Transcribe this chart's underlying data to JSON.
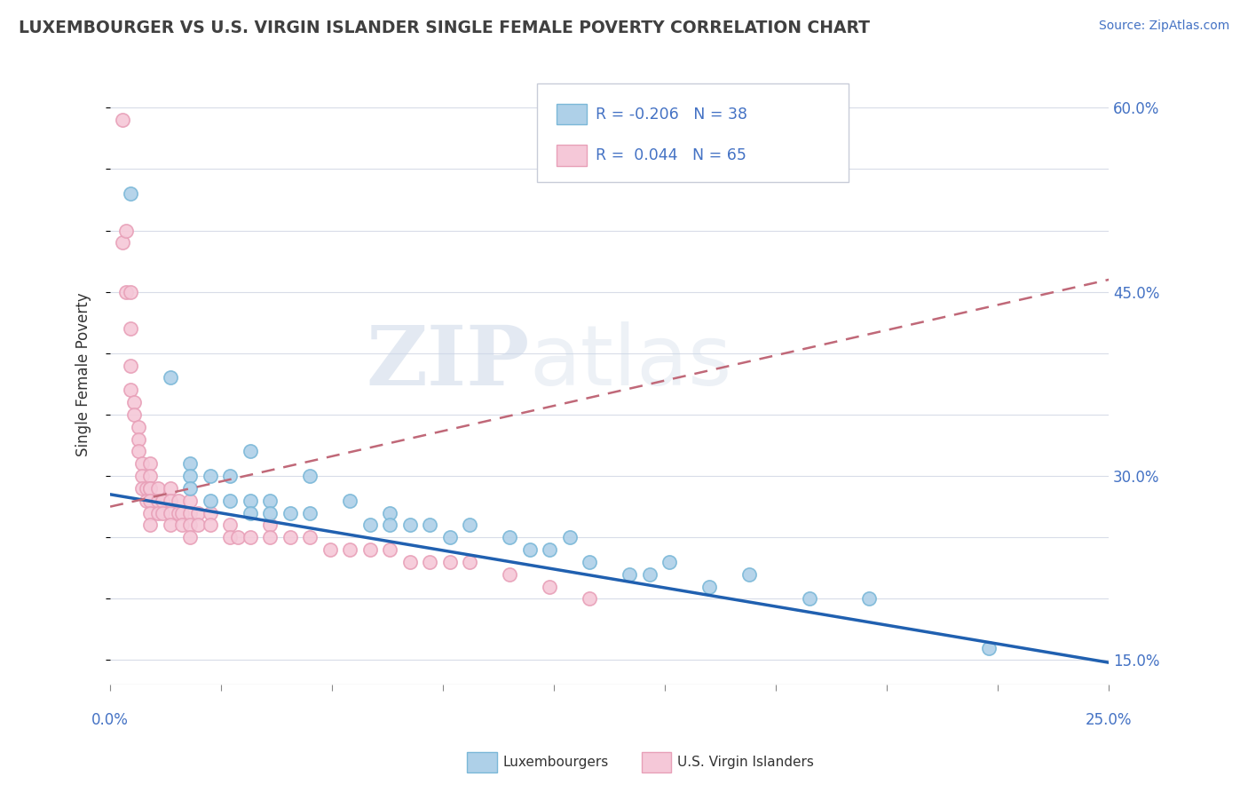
{
  "title": "LUXEMBOURGER VS U.S. VIRGIN ISLANDER SINGLE FEMALE POVERTY CORRELATION CHART",
  "source": "Source: ZipAtlas.com",
  "ylabel": "Single Female Poverty",
  "xlim": [
    0.0,
    0.25
  ],
  "ylim": [
    0.13,
    0.635
  ],
  "ytick_vals": [
    0.15,
    0.2,
    0.25,
    0.3,
    0.35,
    0.4,
    0.45,
    0.5,
    0.55,
    0.6
  ],
  "ytick_labels": [
    "15.0%",
    "",
    "",
    "30.0%",
    "",
    "",
    "45.0%",
    "",
    "",
    "60.0%"
  ],
  "blue_color": "#7bb8d8",
  "blue_fill": "#aed0e8",
  "pink_color": "#e8a0b8",
  "pink_fill": "#f5c8d8",
  "blue_line_color": "#2060b0",
  "pink_line_color": "#c06878",
  "watermark_zip": "ZIP",
  "watermark_atlas": "atlas",
  "blue_scatter_x": [
    0.005,
    0.015,
    0.02,
    0.02,
    0.02,
    0.025,
    0.025,
    0.03,
    0.03,
    0.035,
    0.035,
    0.035,
    0.04,
    0.04,
    0.045,
    0.05,
    0.05,
    0.06,
    0.065,
    0.07,
    0.07,
    0.075,
    0.08,
    0.085,
    0.09,
    0.1,
    0.105,
    0.11,
    0.115,
    0.12,
    0.13,
    0.135,
    0.14,
    0.15,
    0.16,
    0.175,
    0.19,
    0.22
  ],
  "blue_scatter_y": [
    0.53,
    0.38,
    0.31,
    0.3,
    0.29,
    0.3,
    0.28,
    0.3,
    0.28,
    0.32,
    0.28,
    0.27,
    0.28,
    0.27,
    0.27,
    0.3,
    0.27,
    0.28,
    0.26,
    0.27,
    0.26,
    0.26,
    0.26,
    0.25,
    0.26,
    0.25,
    0.24,
    0.24,
    0.25,
    0.23,
    0.22,
    0.22,
    0.23,
    0.21,
    0.22,
    0.2,
    0.2,
    0.16
  ],
  "pink_scatter_x": [
    0.003,
    0.003,
    0.004,
    0.004,
    0.005,
    0.005,
    0.005,
    0.005,
    0.006,
    0.006,
    0.007,
    0.007,
    0.007,
    0.008,
    0.008,
    0.008,
    0.009,
    0.009,
    0.01,
    0.01,
    0.01,
    0.01,
    0.01,
    0.01,
    0.01,
    0.012,
    0.012,
    0.012,
    0.013,
    0.013,
    0.015,
    0.015,
    0.015,
    0.015,
    0.017,
    0.017,
    0.018,
    0.018,
    0.02,
    0.02,
    0.02,
    0.02,
    0.022,
    0.022,
    0.025,
    0.025,
    0.03,
    0.03,
    0.032,
    0.035,
    0.04,
    0.04,
    0.045,
    0.05,
    0.055,
    0.06,
    0.065,
    0.07,
    0.075,
    0.08,
    0.085,
    0.09,
    0.1,
    0.11,
    0.12
  ],
  "pink_scatter_y": [
    0.59,
    0.49,
    0.5,
    0.45,
    0.45,
    0.42,
    0.39,
    0.37,
    0.36,
    0.35,
    0.34,
    0.33,
    0.32,
    0.31,
    0.3,
    0.29,
    0.29,
    0.28,
    0.31,
    0.3,
    0.29,
    0.29,
    0.28,
    0.27,
    0.26,
    0.29,
    0.28,
    0.27,
    0.28,
    0.27,
    0.29,
    0.28,
    0.27,
    0.26,
    0.28,
    0.27,
    0.27,
    0.26,
    0.28,
    0.27,
    0.26,
    0.25,
    0.27,
    0.26,
    0.27,
    0.26,
    0.26,
    0.25,
    0.25,
    0.25,
    0.26,
    0.25,
    0.25,
    0.25,
    0.24,
    0.24,
    0.24,
    0.24,
    0.23,
    0.23,
    0.23,
    0.23,
    0.22,
    0.21,
    0.2
  ]
}
